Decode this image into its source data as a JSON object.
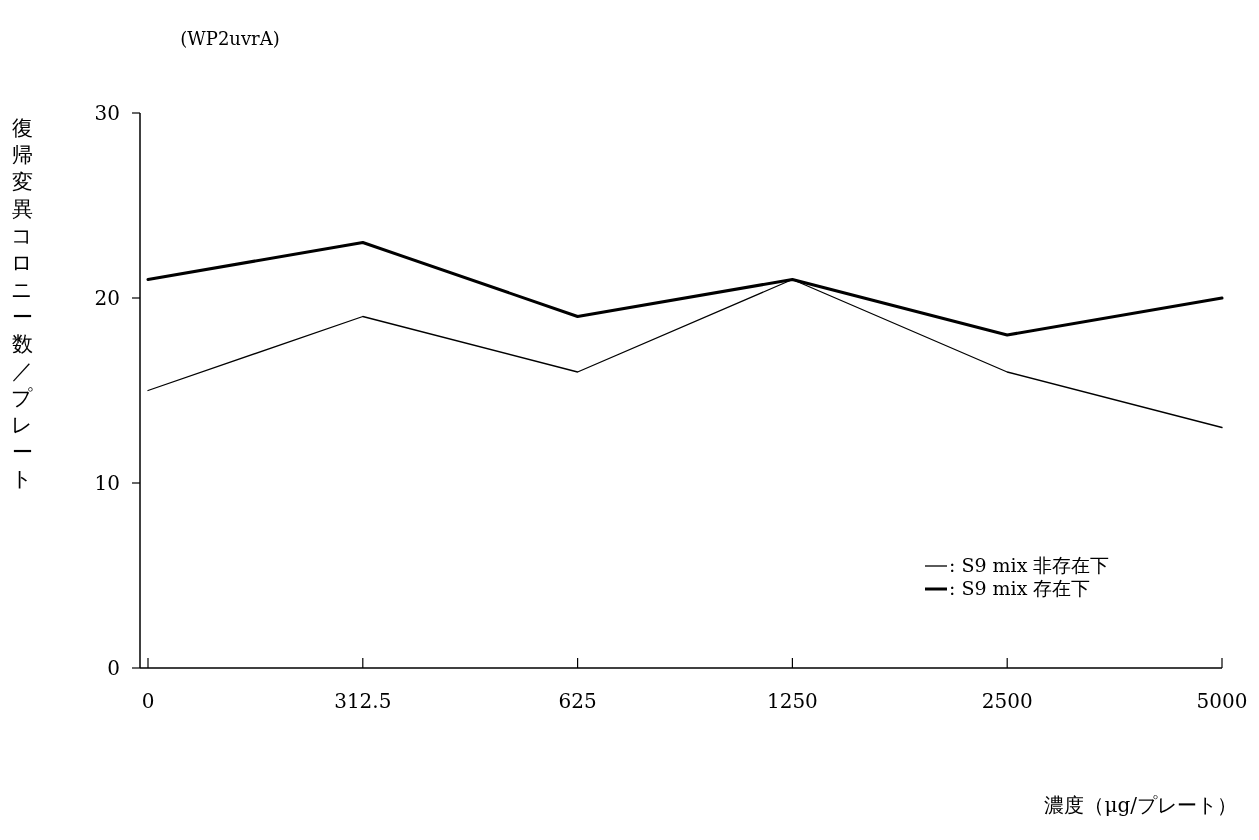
{
  "chart_data": {
    "type": "line",
    "title": "(WP2uvrA)",
    "xlabel": "濃度（μg/プレート）",
    "ylabel": "復帰変異コロニー数／プレート",
    "categories": [
      "0",
      "312.5",
      "625",
      "1250",
      "2500",
      "5000"
    ],
    "series": [
      {
        "name": ": S9 mix 非存在下",
        "color": "#000000",
        "values": [
          15,
          19,
          16,
          21,
          16,
          13
        ]
      },
      {
        "name": ": S9 mix 存在下",
        "color": "#000000",
        "values": [
          21,
          23,
          19,
          21,
          18,
          20
        ]
      }
    ],
    "ylim": [
      0,
      30
    ],
    "yticks": [
      0,
      10,
      20,
      30
    ],
    "legend": "bottom right"
  }
}
